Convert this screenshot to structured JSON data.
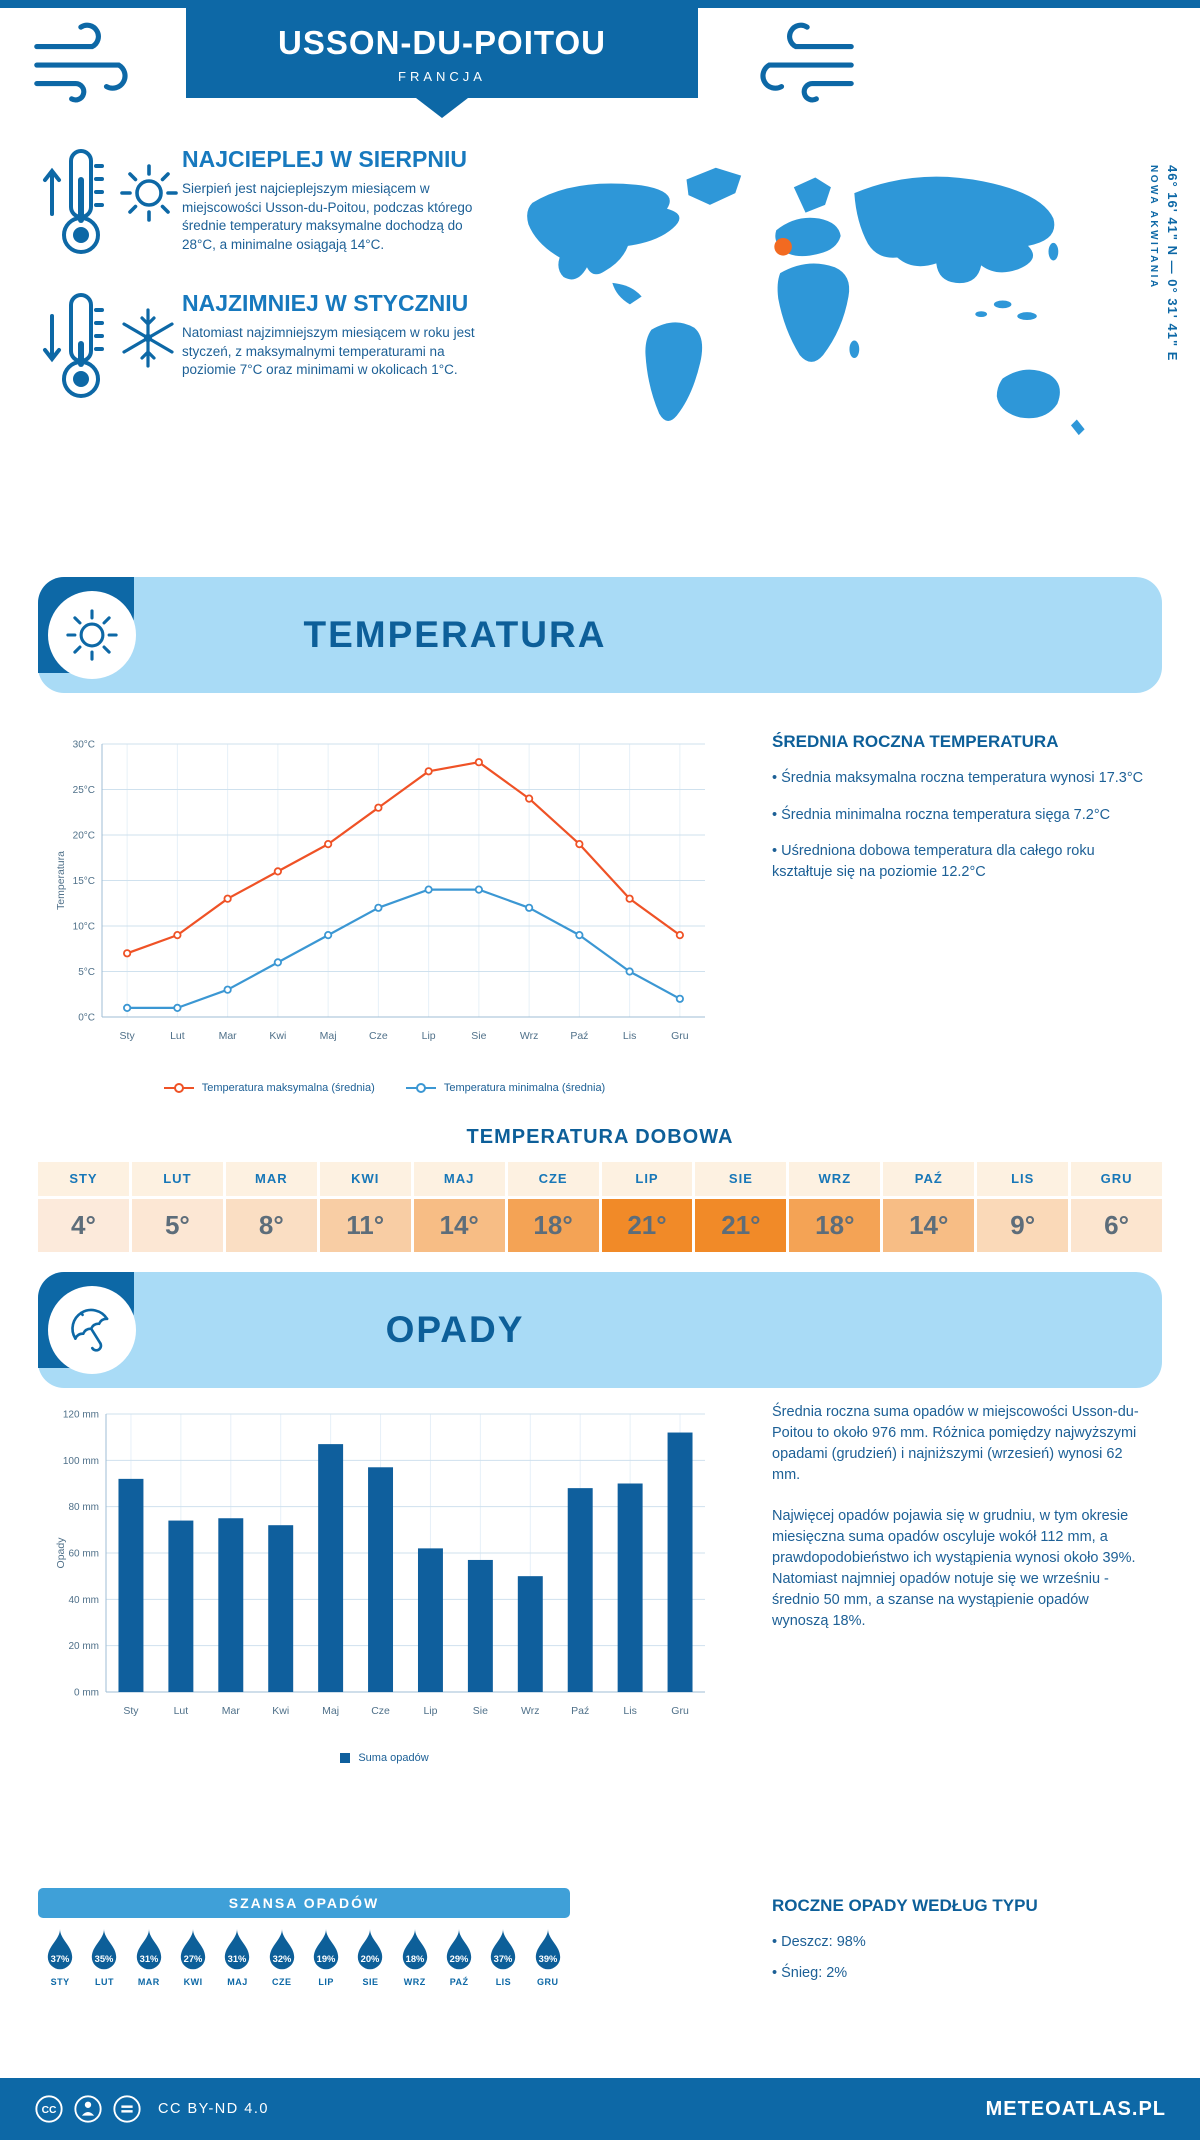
{
  "header": {
    "title": "USSON-DU-POITOU",
    "subtitle": "FRANCJA"
  },
  "highlights": {
    "warm_title": "NAJCIEPLEJ W SIERPNIU",
    "warm_text": "Sierpień jest najcieplejszym miesiącem w miejscowości Usson-du-Poitou, podczas którego średnie temperatury maksymalne dochodzą do 28°C, a minimalne osiągają 14°C.",
    "cold_title": "NAJZIMNIEJ W STYCZNIU",
    "cold_text": "Natomiast najzimniejszym miesiącem w roku jest styczeń, z maksymalnymi temperaturami na poziomie 7°C oraz minimami w okolicach 1°C."
  },
  "map": {
    "coordinates": "46° 16' 41\" N — 0° 31' 41\" E",
    "region": "NOWA AKWITANIA",
    "marker_color": "#f26a21"
  },
  "temperature": {
    "section_title": "TEMPERATURA",
    "annual_heading": "ŚREDNIA ROCZNA TEMPERATURA",
    "annual_bullets": [
      "• Średnia maksymalna roczna temperatura wynosi 17.3°C",
      "• Średnia minimalna roczna temperatura sięga 7.2°C",
      "• Uśredniona dobowa temperatura dla całego roku kształtuje się na poziomie 12.2°C"
    ],
    "daily_heading": "TEMPERATURA DOBOWA",
    "daily": {
      "months": [
        "STY",
        "LUT",
        "MAR",
        "KWI",
        "MAJ",
        "CZE",
        "LIP",
        "SIE",
        "WRZ",
        "PAŹ",
        "LIS",
        "GRU"
      ],
      "values": [
        "4°",
        "5°",
        "8°",
        "11°",
        "14°",
        "18°",
        "21°",
        "21°",
        "18°",
        "14°",
        "9°",
        "6°"
      ],
      "cell_colors": [
        "#fceadb",
        "#fce7d4",
        "#fadec3",
        "#f8cda4",
        "#f7bd85",
        "#f4a355",
        "#f18a28",
        "#f18a28",
        "#f4a355",
        "#f7bd85",
        "#fad9b8",
        "#fce5cf"
      ],
      "header_bg": "#fdf1e1"
    }
  },
  "precipitation": {
    "section_title": "OPADY",
    "text1": "Średnia roczna suma opadów w miejscowości Usson-du-Poitou to około 976 mm. Różnica pomiędzy najwyższymi opadami (grudzień) i najniższymi (wrzesień) wynosi 62 mm.",
    "text2": "Najwięcej opadów pojawia się w grudniu, w tym okresie miesięczna suma opadów oscyluje wokół 112 mm, a prawdopodobieństwo ich wystąpienia wynosi około 39%. Natomiast najmniej opadów notuje się we wrześniu - średnio 50 mm, a szanse na wystąpienie opadów wynoszą 18%.",
    "type_heading": "ROCZNE OPADY WEDŁUG TYPU",
    "type_bullets": [
      "• Deszcz: 98%",
      "• Śnieg: 2%"
    ]
  },
  "chance": {
    "title": "SZANSA OPADÓW",
    "months": [
      "STY",
      "LUT",
      "MAR",
      "KWI",
      "MAJ",
      "CZE",
      "LIP",
      "SIE",
      "WRZ",
      "PAŹ",
      "LIS",
      "GRU"
    ],
    "values": [
      "37%",
      "35%",
      "31%",
      "27%",
      "31%",
      "32%",
      "19%",
      "20%",
      "18%",
      "29%",
      "37%",
      "39%"
    ]
  },
  "footer": {
    "license": "CC BY-ND 4.0",
    "site": "METEOATLAS.PL"
  },
  "colors": {
    "dark_blue": "#0d68a6",
    "light_banner": "#a9dbf6",
    "heading_blue": "#1779be",
    "body_blue": "#1d6096",
    "max_line": "#ef5226",
    "min_line": "#3b97d3",
    "bar": "#0f5f9d",
    "chance_banner": "#3fa0d8",
    "map_blue": "#2e97d8"
  },
  "chart_data": [
    {
      "type": "line",
      "title": "TEMPERATURA",
      "categories": [
        "Sty",
        "Lut",
        "Mar",
        "Kwi",
        "Maj",
        "Cze",
        "Lip",
        "Sie",
        "Wrz",
        "Paź",
        "Lis",
        "Gru"
      ],
      "series": [
        {
          "name": "Temperatura maksymalna (średnia)",
          "color": "#ef5226",
          "values": [
            7,
            9,
            13,
            16,
            19,
            23,
            27,
            28,
            24,
            19,
            13,
            9
          ]
        },
        {
          "name": "Temperatura minimalna (średnia)",
          "color": "#3b97d3",
          "values": [
            1,
            1,
            3,
            6,
            9,
            12,
            14,
            14,
            12,
            9,
            5,
            2
          ]
        }
      ],
      "ylabel": "Temperatura",
      "ylim": [
        0,
        30
      ],
      "ytick_step": 5,
      "ytick_suffix": "°C",
      "grid": true,
      "legend_position": "bottom"
    },
    {
      "type": "bar",
      "title": "OPADY",
      "categories": [
        "Sty",
        "Lut",
        "Mar",
        "Kwi",
        "Maj",
        "Cze",
        "Lip",
        "Sie",
        "Wrz",
        "Paź",
        "Lis",
        "Gru"
      ],
      "series": [
        {
          "name": "Suma opadów",
          "color": "#0f5f9d",
          "values": [
            92,
            74,
            75,
            72,
            107,
            97,
            62,
            57,
            50,
            88,
            90,
            112
          ]
        }
      ],
      "ylabel": "Opady",
      "ylim": [
        0,
        120
      ],
      "ytick_step": 20,
      "ytick_suffix": " mm",
      "grid": true,
      "legend_position": "bottom"
    }
  ]
}
